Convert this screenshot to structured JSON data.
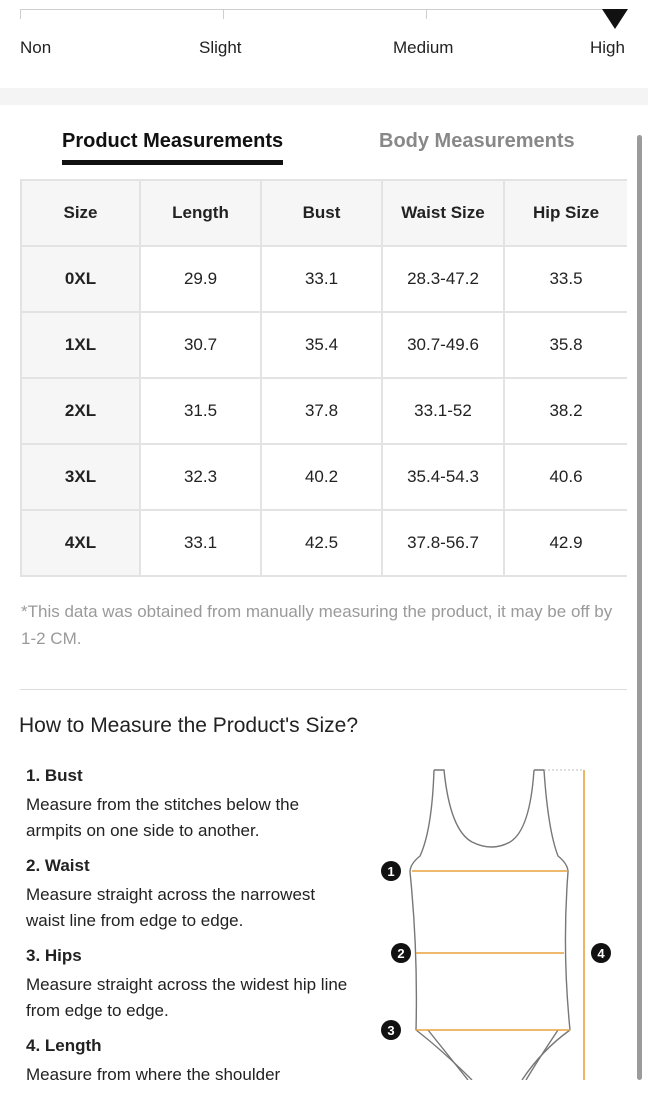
{
  "stretch": {
    "labels": [
      "Non",
      "Slight",
      "Medium",
      "High"
    ],
    "selected": "High"
  },
  "tabs": {
    "active": "Product Measurements",
    "inactive": "Body Measurements"
  },
  "table": {
    "headers": [
      "Size",
      "Length",
      "Bust",
      "Waist Size",
      "Hip Size"
    ],
    "rows": [
      [
        "0XL",
        "29.9",
        "33.1",
        "28.3-47.2",
        "33.5"
      ],
      [
        "1XL",
        "30.7",
        "35.4",
        "30.7-49.6",
        "35.8"
      ],
      [
        "2XL",
        "31.5",
        "37.8",
        "33.1-52",
        "38.2"
      ],
      [
        "3XL",
        "32.3",
        "40.2",
        "35.4-54.3",
        "40.6"
      ],
      [
        "4XL",
        "33.1",
        "42.5",
        "37.8-56.7",
        "42.9"
      ]
    ]
  },
  "note": "*This data was obtained from manually measuring the product, it may be off by 1-2 CM.",
  "how_to": {
    "title": "How to Measure the Product's Size?",
    "steps": [
      {
        "title": "1. Bust",
        "desc": "Measure from the stitches below the armpits on one side to another."
      },
      {
        "title": "2. Waist",
        "desc": "Measure straight across the narrowest waist line from edge to edge."
      },
      {
        "title": "3. Hips",
        "desc": "Measure straight across the widest hip line from edge to edge."
      },
      {
        "title": "4. Length",
        "desc": "Measure from where the shoulder"
      }
    ]
  },
  "diagram": {
    "markers": [
      "1",
      "2",
      "3",
      "4"
    ],
    "accent_color": "#e8a23c",
    "outline_color": "#777777"
  }
}
